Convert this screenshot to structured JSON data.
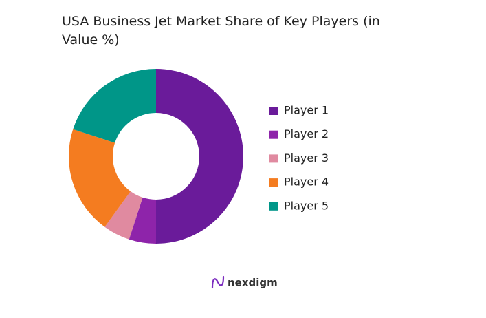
{
  "chart_data": {
    "type": "donut",
    "title": "USA Business Jet Market Share of Key Players (in Value %)",
    "categories": [
      "Player 1",
      "Player 2",
      "Player 3",
      "Player 4",
      "Player 5"
    ],
    "values": [
      50,
      5,
      5,
      20,
      20
    ],
    "colors": [
      "#6a1b9a",
      "#8e24aa",
      "#e08aa0",
      "#f47c20",
      "#009688"
    ],
    "legend": "right"
  },
  "logo": "nexdigm"
}
